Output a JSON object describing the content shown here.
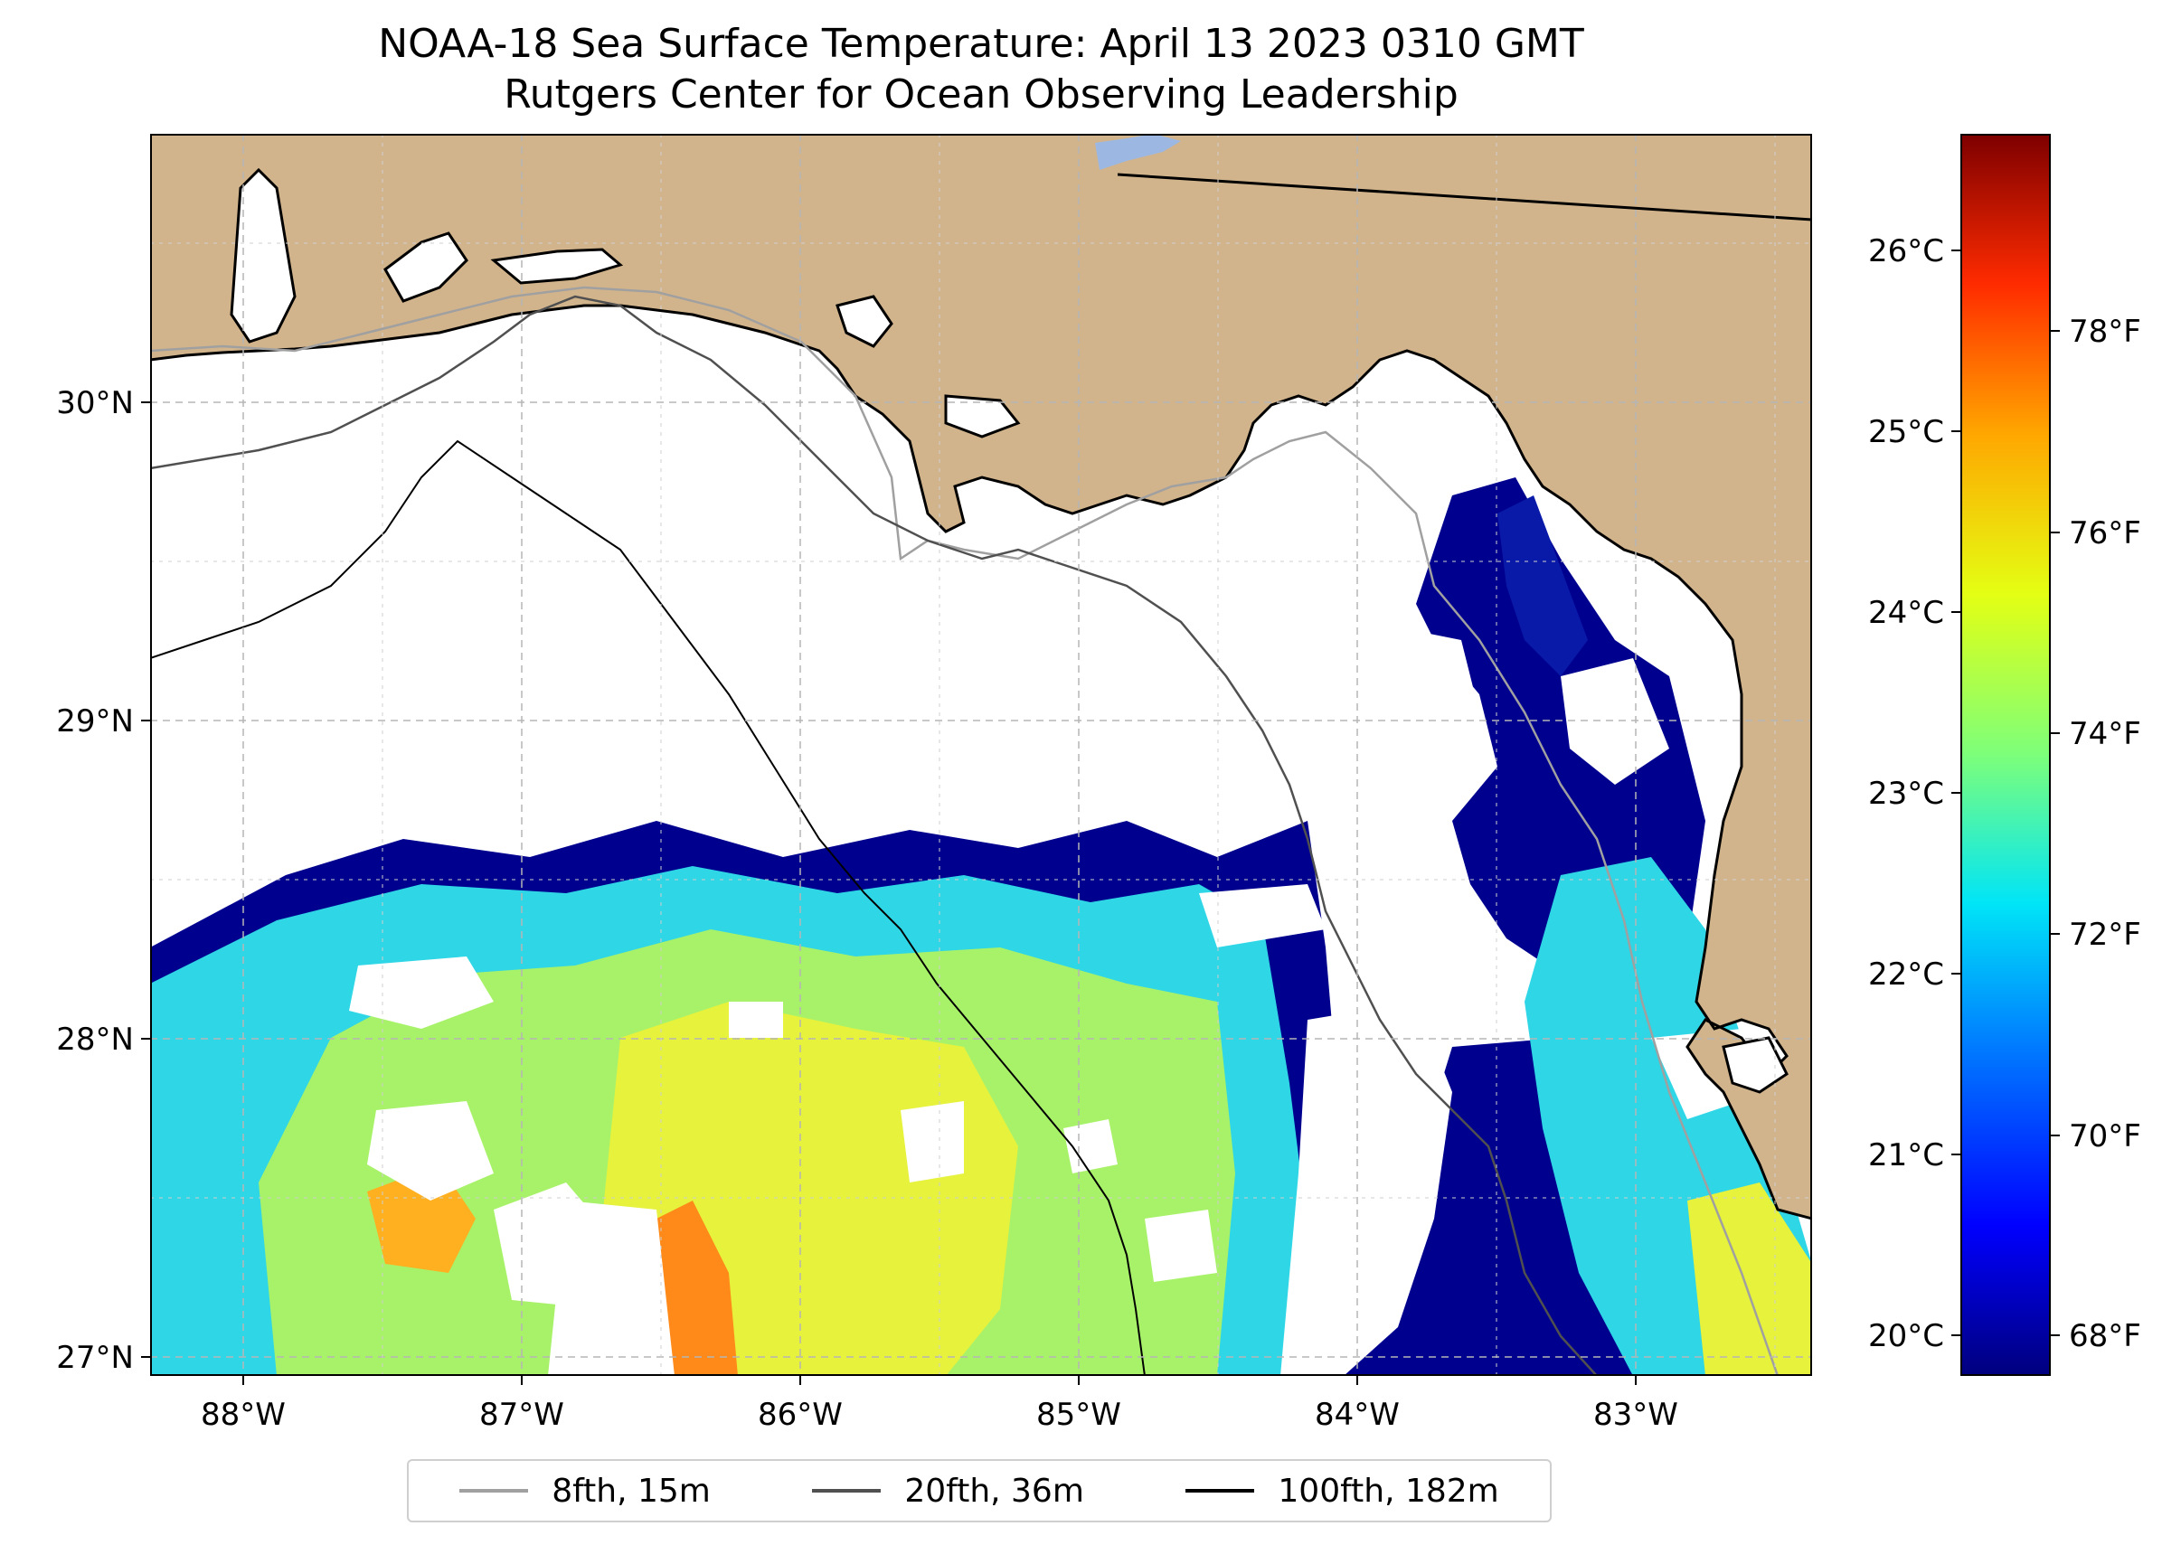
{
  "title": {
    "line1": "NOAA-18 Sea Surface Temperature: April 13 2023 0310 GMT",
    "line2": "Rutgers Center for Ocean Observing Leadership"
  },
  "axes": {
    "x_ticks": [
      "88°W",
      "87°W",
      "86°W",
      "85°W",
      "84°W",
      "83°W"
    ],
    "y_ticks": [
      "27°N",
      "28°N",
      "29°N",
      "30°N"
    ]
  },
  "colorbar": {
    "celsius_ticks": [
      "20°C",
      "21°C",
      "22°C",
      "23°C",
      "24°C",
      "25°C",
      "26°C"
    ],
    "fahrenheit_ticks": [
      "68°F",
      "70°F",
      "72°F",
      "74°F",
      "76°F",
      "78°F"
    ],
    "colormap": "jet",
    "range_celsius": [
      19.8,
      26.7
    ]
  },
  "legend": {
    "items": [
      {
        "label": "8fth, 15m",
        "color": "#a0a0a0"
      },
      {
        "label": "20fth, 36m",
        "color": "#505050"
      },
      {
        "label": "100fth, 182m",
        "color": "#000000"
      }
    ]
  },
  "colors": {
    "land": "#d2b48c",
    "lake": "#9cb8e2",
    "gridline": "#b5b5b5"
  },
  "map_extent": {
    "lon": [
      -88.33,
      -82.36
    ],
    "lat": [
      26.94,
      30.85
    ]
  }
}
